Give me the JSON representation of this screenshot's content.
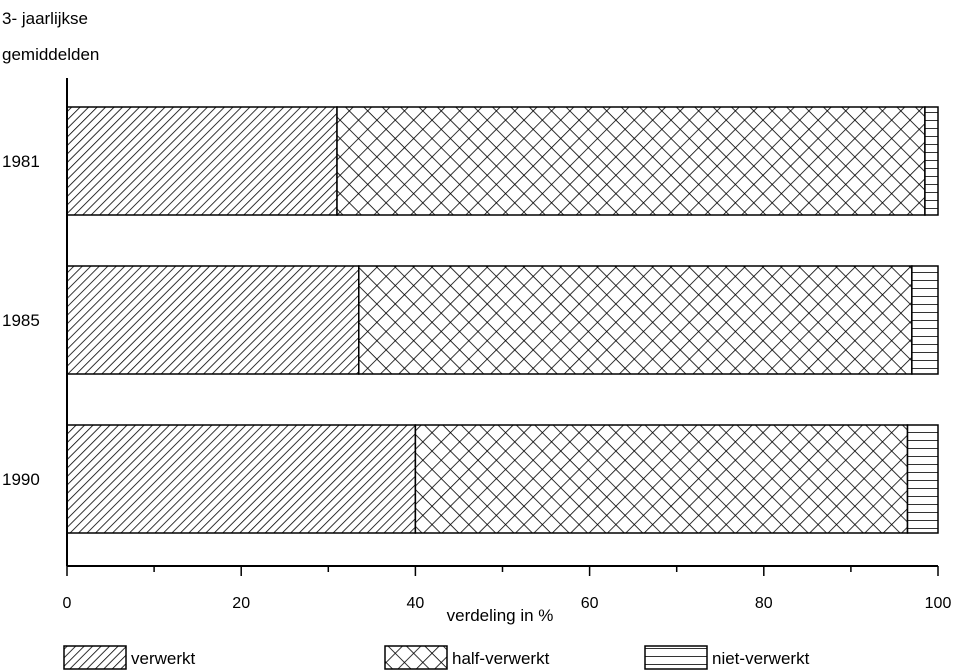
{
  "chart_data": {
    "type": "bar",
    "orientation": "horizontal",
    "stacked": true,
    "title": "3- jaarlijkse gemiddelden",
    "title_lines": [
      "3- jaarlijkse",
      "gemiddelden"
    ],
    "xlabel": "verdeling in %",
    "ylabel": "",
    "xlim": [
      0,
      100
    ],
    "xticks": [
      "0",
      "20",
      "40",
      "60",
      "80",
      "100"
    ],
    "categories": [
      "1981",
      "1985",
      "1990"
    ],
    "series": [
      {
        "name": "verwerkt",
        "pattern": "diagonal-hatch",
        "values": [
          31,
          33.5,
          40
        ]
      },
      {
        "name": "half-verwerkt",
        "pattern": "crosshatch",
        "values": [
          67.5,
          63.5,
          56.5
        ]
      },
      {
        "name": "niet-verwerkt",
        "pattern": "horizontal-lines",
        "values": [
          1.5,
          3,
          3.5
        ]
      }
    ],
    "grid": false,
    "legend_position": "bottom",
    "colors": {
      "ink": "#000000",
      "background": "#ffffff"
    }
  }
}
